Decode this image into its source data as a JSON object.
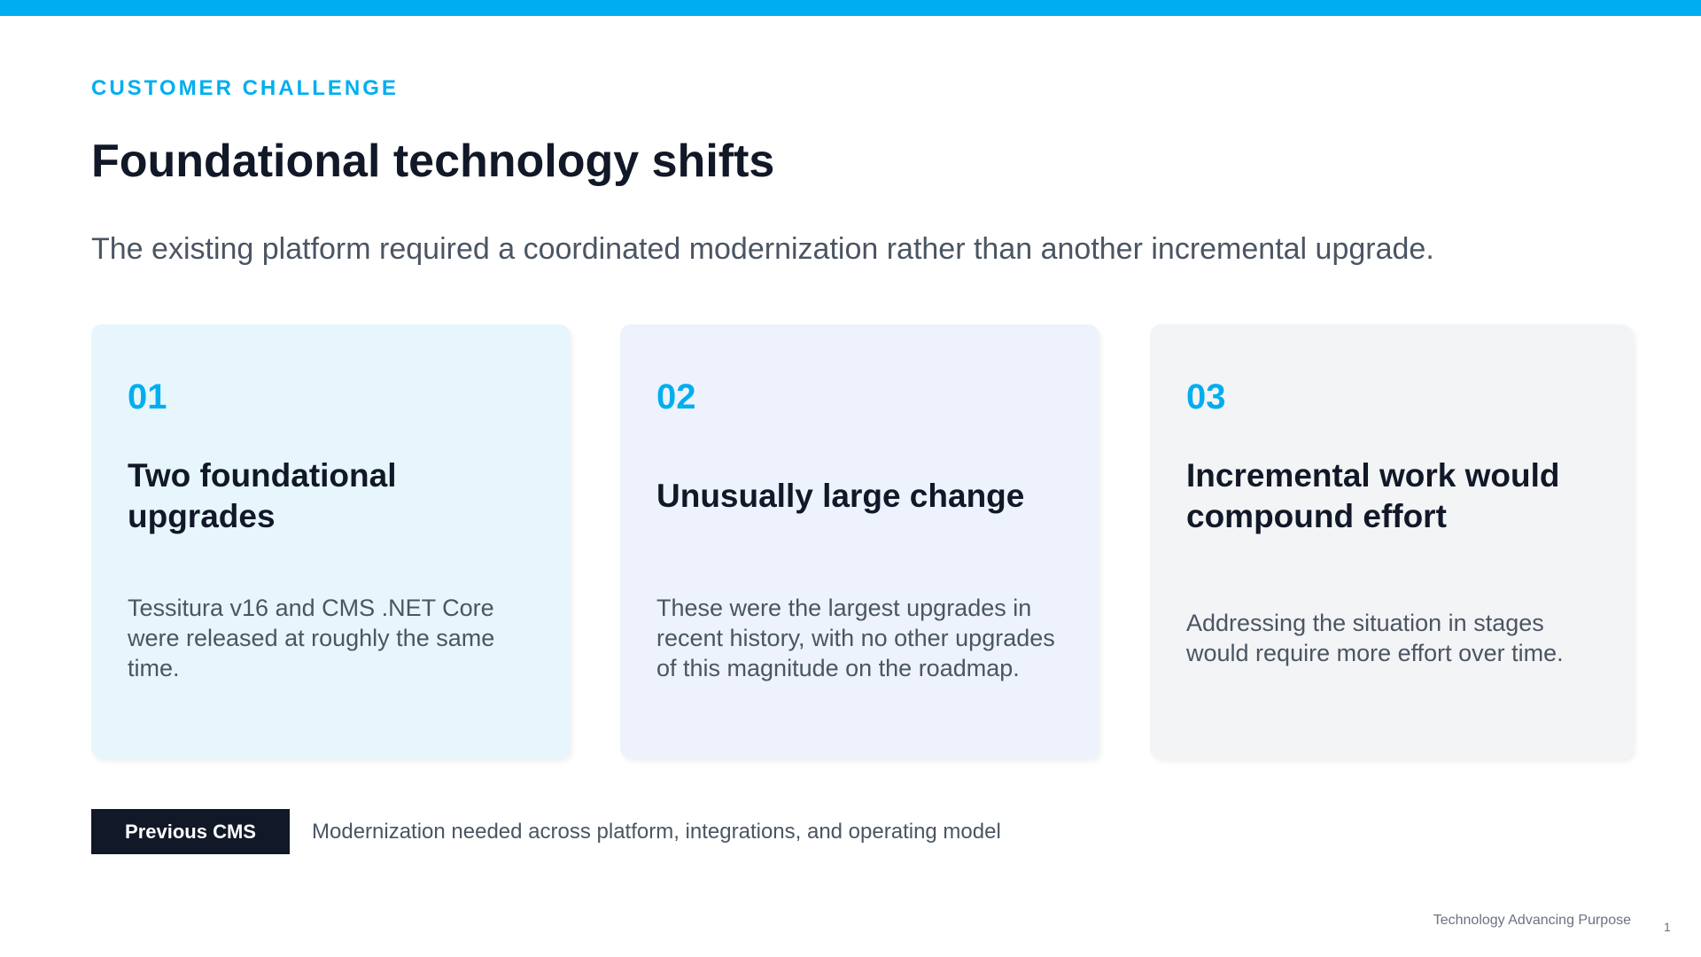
{
  "header": {
    "eyebrow": "CUSTOMER CHALLENGE",
    "title": "Foundational technology shifts",
    "subtitle": "The existing platform required a coordinated modernization rather than another incremental upgrade."
  },
  "cards": [
    {
      "number": "01",
      "heading": "Two foundational upgrades",
      "body": "Tessitura v16 and CMS .NET Core were released at roughly the same time.",
      "background": "#E6F6FC"
    },
    {
      "number": "02",
      "heading": "Unusually large change",
      "body": "These were the largest upgrades in recent history, with no other upgrades of this magnitude on the roadmap.",
      "background": "#EDF2FC"
    },
    {
      "number": "03",
      "heading": "Incremental work would compound effort",
      "body": "Addressing the situation in stages would require more effort over time.",
      "background": "#F3F4F6"
    }
  ],
  "footer": {
    "pill_label": "Previous CMS",
    "description": "Modernization needed across platform, integrations, and operating model",
    "brand": "Technology Advancing Purpose",
    "page_number": "1"
  },
  "colors": {
    "accent": "#00AEEF",
    "dark": "#111827",
    "muted": "#4B5563"
  }
}
